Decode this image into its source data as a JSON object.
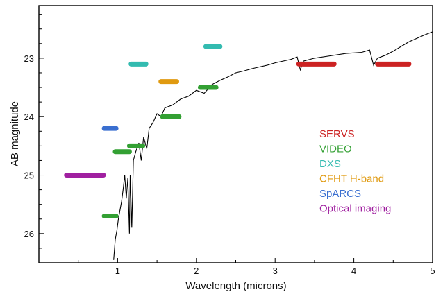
{
  "chart_data": {
    "type": "line",
    "title": "",
    "xlabel": "Wavelength (microns)",
    "ylabel": "AB magnitude",
    "xlim": [
      0,
      5
    ],
    "ylim": [
      26.5,
      22.1
    ],
    "y_inverted": true,
    "x_ticks": [
      1,
      2,
      3,
      4,
      5
    ],
    "y_ticks": [
      23,
      24,
      25,
      26
    ],
    "grid": false,
    "legend_placement": "right",
    "spectrum": {
      "color": "#000000",
      "points": [
        [
          0.95,
          26.45
        ],
        [
          0.97,
          26.1
        ],
        [
          0.99,
          25.95
        ],
        [
          1.01,
          25.75
        ],
        [
          1.03,
          25.6
        ],
        [
          1.05,
          25.45
        ],
        [
          1.07,
          25.25
        ],
        [
          1.09,
          25.0
        ],
        [
          1.11,
          25.4
        ],
        [
          1.13,
          25.05
        ],
        [
          1.15,
          26.0
        ],
        [
          1.16,
          25.0
        ],
        [
          1.18,
          25.9
        ],
        [
          1.2,
          24.75
        ],
        [
          1.23,
          24.6
        ],
        [
          1.27,
          24.45
        ],
        [
          1.3,
          24.75
        ],
        [
          1.33,
          24.35
        ],
        [
          1.37,
          24.55
        ],
        [
          1.4,
          24.2
        ],
        [
          1.45,
          24.1
        ],
        [
          1.5,
          23.95
        ],
        [
          1.55,
          24.0
        ],
        [
          1.6,
          23.85
        ],
        [
          1.7,
          23.8
        ],
        [
          1.8,
          23.7
        ],
        [
          1.9,
          23.65
        ],
        [
          2.0,
          23.55
        ],
        [
          2.1,
          23.6
        ],
        [
          2.2,
          23.45
        ],
        [
          2.3,
          23.38
        ],
        [
          2.4,
          23.32
        ],
        [
          2.5,
          23.25
        ],
        [
          2.6,
          23.22
        ],
        [
          2.7,
          23.18
        ],
        [
          2.8,
          23.15
        ],
        [
          2.9,
          23.12
        ],
        [
          3.0,
          23.08
        ],
        [
          3.1,
          23.05
        ],
        [
          3.2,
          23.02
        ],
        [
          3.28,
          22.98
        ],
        [
          3.32,
          23.2
        ],
        [
          3.36,
          23.05
        ],
        [
          3.5,
          23.0
        ],
        [
          3.7,
          22.96
        ],
        [
          3.9,
          22.92
        ],
        [
          4.1,
          22.9
        ],
        [
          4.2,
          22.86
        ],
        [
          4.25,
          23.12
        ],
        [
          4.3,
          23.0
        ],
        [
          4.4,
          22.95
        ],
        [
          4.5,
          22.88
        ],
        [
          4.6,
          22.8
        ],
        [
          4.7,
          22.72
        ],
        [
          4.8,
          22.66
        ],
        [
          4.9,
          22.6
        ],
        [
          5.0,
          22.55
        ]
      ]
    },
    "series": [
      {
        "name": "SERVS",
        "color": "#cc2222",
        "segments": [
          {
            "x": [
              3.3,
              3.75
            ],
            "y": 23.1
          },
          {
            "x": [
              4.3,
              4.7
            ],
            "y": 23.1
          }
        ]
      },
      {
        "name": "VIDEO",
        "color": "#33a033",
        "segments": [
          {
            "x": [
              0.83,
              0.98
            ],
            "y": 25.7
          },
          {
            "x": [
              0.97,
              1.15
            ],
            "y": 24.6
          },
          {
            "x": [
              1.15,
              1.32
            ],
            "y": 24.5
          },
          {
            "x": [
              1.57,
              1.78
            ],
            "y": 24.0
          },
          {
            "x": [
              2.05,
              2.25
            ],
            "y": 23.5
          }
        ]
      },
      {
        "name": "DXS",
        "color": "#33bbb0",
        "segments": [
          {
            "x": [
              1.17,
              1.36
            ],
            "y": 23.1
          },
          {
            "x": [
              2.12,
              2.3
            ],
            "y": 22.8
          }
        ]
      },
      {
        "name": "CFHT H-band",
        "color": "#e09a10",
        "segments": [
          {
            "x": [
              1.55,
              1.75
            ],
            "y": 23.4
          }
        ]
      },
      {
        "name": "SpARCS",
        "color": "#3a6fd0",
        "segments": [
          {
            "x": [
              0.83,
              0.98
            ],
            "y": 24.2
          }
        ]
      },
      {
        "name": "Optical imaging",
        "color": "#a020a0",
        "segments": [
          {
            "x": [
              0.35,
              0.82
            ],
            "y": 25.0
          }
        ]
      }
    ]
  }
}
